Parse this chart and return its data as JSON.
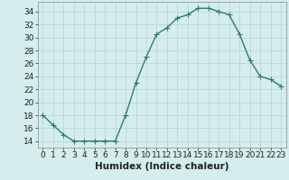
{
  "x": [
    0,
    1,
    2,
    3,
    4,
    5,
    6,
    7,
    8,
    9,
    10,
    11,
    12,
    13,
    14,
    15,
    16,
    17,
    18,
    19,
    20,
    21,
    22,
    23
  ],
  "y": [
    18,
    16.5,
    15,
    14,
    14,
    14,
    14,
    14,
    18,
    23,
    27,
    30.5,
    31.5,
    33,
    33.5,
    34.5,
    34.5,
    34,
    33.5,
    30.5,
    26.5,
    24,
    23.5,
    22.5
  ],
  "line_color": "#2d7d6d",
  "marker_color": "#2d7d6d",
  "bg_color": "#d5eded",
  "grid_color": "#b8d8d8",
  "axis_color": "#888888",
  "xlabel": "Humidex (Indice chaleur)",
  "xlim": [
    -0.5,
    23.5
  ],
  "ylim": [
    13,
    35.5
  ],
  "yticks": [
    14,
    16,
    18,
    20,
    22,
    24,
    26,
    28,
    30,
    32,
    34
  ],
  "xticks": [
    0,
    1,
    2,
    3,
    4,
    5,
    6,
    7,
    8,
    9,
    10,
    11,
    12,
    13,
    14,
    15,
    16,
    17,
    18,
    19,
    20,
    21,
    22,
    23
  ],
  "xtick_labels": [
    "0",
    "1",
    "2",
    "3",
    "4",
    "5",
    "6",
    "7",
    "8",
    "9",
    "10",
    "11",
    "12",
    "13",
    "14",
    "15",
    "16",
    "17",
    "18",
    "19",
    "20",
    "21",
    "22",
    "23"
  ],
  "xlabel_fontsize": 7.5,
  "tick_fontsize": 6.5,
  "marker_size": 2.8,
  "line_width": 1.0
}
